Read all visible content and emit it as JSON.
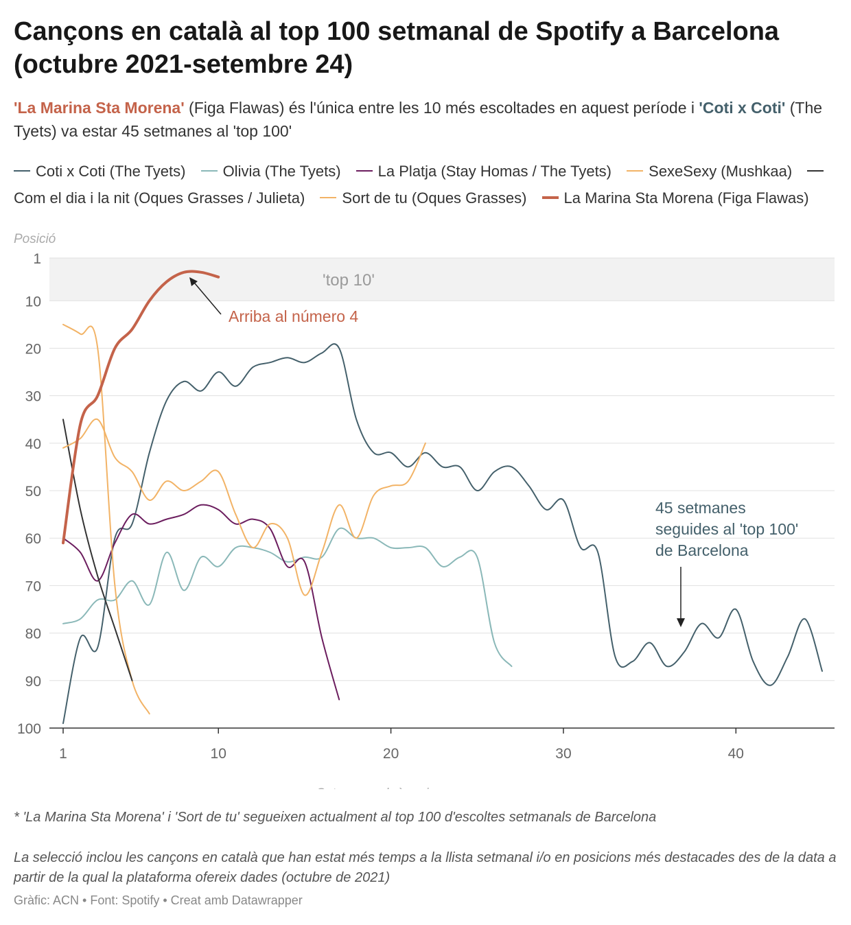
{
  "title": "Cançons en català al top 100 setmanal de Spotify a Barcelona (octubre 2021-setembre 24)",
  "subtitle": {
    "marina": "'La Marina Sta Morena'",
    "text1": " (Figa Flawas) és l'única entre les 10 més escoltades en aquest període i ",
    "coti": "'Coti x Coti'",
    "text2": "  (The Tyets) va estar 45 setmanes al 'top 100'"
  },
  "notes": {
    "note1": "* 'La Marina Sta Morena' i 'Sort de tu' segueixen actualment al top 100 d'escoltes setmanals de Barcelona",
    "note2": "La selecció inclou les cançons en català que han estat més temps a la llista setmanal i/o en posicions més destacades des de la data a partir de la qual la plataforma ofereix dades (octubre de 2021)",
    "credit": "Gràfic: ACN • Font: Spotify • Creat amb Datawrapper"
  },
  "chart_data": {
    "type": "line",
    "ylabel": "Posició",
    "xlabel": "Setmanes al rànquing",
    "y_reversed": true,
    "ylim": [
      1,
      100
    ],
    "xlim": [
      1,
      45
    ],
    "yticks": [
      1,
      10,
      20,
      30,
      40,
      50,
      60,
      70,
      80,
      90,
      100
    ],
    "xticks": [
      1,
      10,
      20,
      30,
      40
    ],
    "grid": true,
    "legend_position": "top",
    "highlight_band": {
      "from": 1,
      "to": 10,
      "label": "'top 10'"
    },
    "annotations": [
      {
        "text": "Arriba al número 4",
        "color": "#c4634a"
      },
      {
        "text": "45 setmanes seguides al 'top 100' de Barcelona",
        "color": "#44606b"
      }
    ],
    "series": [
      {
        "name": "Coti x Coti (The Tyets)",
        "color": "#44606b",
        "width": 2,
        "x": [
          1,
          2,
          3,
          4,
          5,
          6,
          7,
          8,
          9,
          10,
          11,
          12,
          13,
          14,
          15,
          16,
          17,
          18,
          19,
          20,
          21,
          22,
          23,
          24,
          25,
          26,
          27,
          28,
          29,
          30,
          31,
          32,
          33,
          34,
          35,
          36,
          37,
          38,
          39,
          40,
          41,
          42,
          43,
          44,
          45
        ],
        "y": [
          99,
          81,
          83,
          60,
          57,
          42,
          31,
          27,
          29,
          25,
          28,
          24,
          23,
          22,
          23,
          21,
          20,
          35,
          42,
          42,
          45,
          42,
          45,
          45,
          50,
          46,
          45,
          49,
          54,
          52,
          62,
          63,
          85,
          86,
          82,
          87,
          84,
          78,
          81,
          75,
          86,
          91,
          85,
          77,
          88
        ]
      },
      {
        "name": "Olivia (The Tyets)",
        "color": "#8ab8b8",
        "width": 2,
        "x": [
          1,
          2,
          3,
          4,
          5,
          6,
          7,
          8,
          9,
          10,
          11,
          12,
          13,
          14,
          15,
          16,
          17,
          18,
          19,
          20,
          21,
          22,
          23,
          24,
          25,
          26,
          27
        ],
        "y": [
          78,
          77,
          73,
          73,
          69,
          74,
          63,
          71,
          64,
          66,
          62,
          62,
          63,
          65,
          64,
          64,
          58,
          60,
          60,
          62,
          62,
          62,
          66,
          64,
          64,
          82,
          87
        ]
      },
      {
        "name": "La Platja (Stay Homas / The Tyets)",
        "color": "#6b1d5e",
        "width": 2,
        "x": [
          1,
          2,
          3,
          4,
          5,
          6,
          7,
          8,
          9,
          10,
          11,
          12,
          13,
          14,
          15,
          16,
          17
        ],
        "y": [
          60,
          63,
          69,
          61,
          55,
          57,
          56,
          55,
          53,
          54,
          57,
          56,
          58,
          66,
          65,
          81,
          94
        ]
      },
      {
        "name": "SexeSexy (Mushkaa)",
        "color": "#f2b366",
        "width": 2,
        "x": [
          1,
          2,
          3,
          4,
          5,
          6
        ],
        "y": [
          15,
          17,
          20,
          70,
          90,
          97
        ]
      },
      {
        "name": "Com el dia i la nit (Oques Grasses / Julieta)",
        "color": "#333333",
        "width": 2,
        "x": [
          1,
          2,
          3,
          4,
          5
        ],
        "y": [
          35,
          54,
          68,
          79,
          90
        ]
      },
      {
        "name": "Sort de tu (Oques Grasses)",
        "color": "#f2b366",
        "width": 2,
        "x": [
          1,
          2,
          3,
          4,
          5,
          6,
          7,
          8,
          9,
          10,
          11,
          12,
          13,
          14,
          15,
          16,
          17,
          18,
          19,
          20,
          21,
          22
        ],
        "y": [
          41,
          39,
          35,
          43,
          46,
          52,
          48,
          50,
          48,
          46,
          55,
          62,
          57,
          60,
          72,
          63,
          53,
          60,
          51,
          49,
          48,
          40
        ]
      },
      {
        "name": "La Marina Sta Morena (Figa Flawas)",
        "color": "#c4634a",
        "width": 4,
        "x": [
          1,
          2,
          3,
          4,
          5,
          6,
          7,
          8,
          9,
          10
        ],
        "y": [
          61,
          36,
          30,
          20,
          16,
          10,
          6,
          4,
          4,
          5
        ]
      }
    ]
  }
}
